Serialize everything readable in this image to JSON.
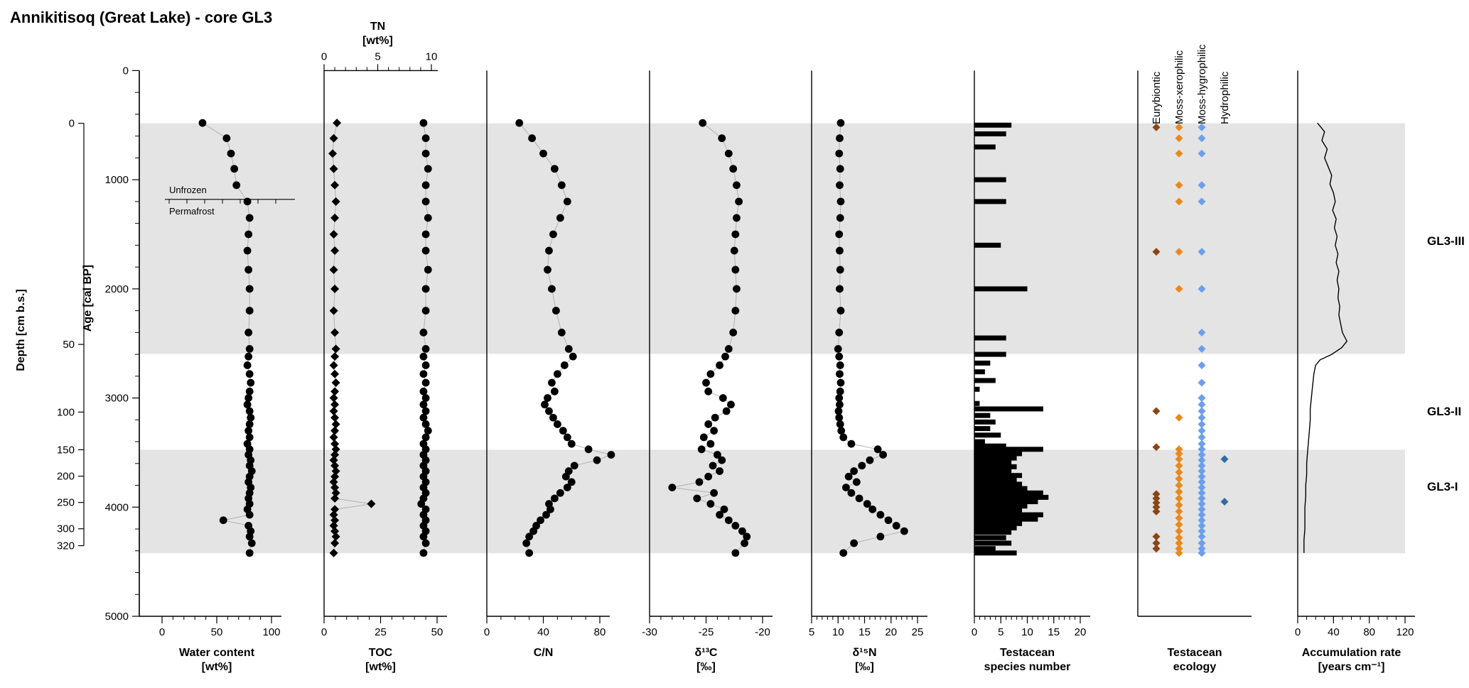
{
  "title": "Annikitisoq (Great Lake) - core GL3",
  "age_axis": {
    "label": "Age [cal  BP]",
    "min": 0,
    "max": 5000,
    "major_ticks": [
      0,
      1000,
      2000,
      3000,
      4000,
      5000
    ],
    "minor_step": 200
  },
  "depth_axis": {
    "label": "Depth [cm b.s.]",
    "ticks": [
      {
        "depth": 0,
        "age": 483
      },
      {
        "depth": 50,
        "age": 2509
      },
      {
        "depth": 100,
        "age": 3129
      },
      {
        "depth": 150,
        "age": 3474
      },
      {
        "depth": 200,
        "age": 3716
      },
      {
        "depth": 250,
        "age": 3957
      },
      {
        "depth": 300,
        "age": 4198
      },
      {
        "depth": 320,
        "age": 4353
      }
    ]
  },
  "zones": [
    {
      "name": "GL3-III",
      "age_from": 483,
      "age_to": 2595,
      "shaded": true,
      "label_age": 1560
    },
    {
      "name": "GL3-II",
      "age_from": 2595,
      "age_to": 3474,
      "shaded": false,
      "label_age": 3120
    },
    {
      "name": "GL3-I",
      "age_from": 3474,
      "age_to": 4422,
      "shaded": true,
      "label_age": 3810
    }
  ],
  "permafrost": {
    "unfrozen_label": "Unfrozen",
    "permafrost_label": "Permafrost",
    "boundary_age": 1180
  },
  "colors": {
    "shading": "#e4e4e4",
    "point": "#000000",
    "connector": "#b0b0b0",
    "bar": "#000000",
    "line": "#000000"
  },
  "chart_data": [
    {
      "id": "water",
      "type": "scatter",
      "xlabel": "Water content",
      "xunit": "[wt%]",
      "xlim": [
        0,
        100
      ],
      "xticks": [
        0,
        50,
        100
      ],
      "minor": 10,
      "marker": "circle",
      "ages": [
        480,
        620,
        760,
        900,
        1050,
        1200,
        1350,
        1500,
        1650,
        1825,
        2000,
        2200,
        2400,
        2550,
        2620,
        2700,
        2780,
        2860,
        2940,
        3000,
        3060,
        3120,
        3180,
        3240,
        3300,
        3360,
        3420,
        3470,
        3520,
        3570,
        3620,
        3670,
        3720,
        3770,
        3820,
        3870,
        3920,
        3970,
        4020,
        4070,
        4120,
        4170,
        4220,
        4270,
        4330,
        4420
      ],
      "values": [
        37,
        59,
        63,
        66,
        68,
        78,
        80,
        79,
        78,
        79,
        80,
        80,
        79,
        80,
        79,
        78,
        80,
        81,
        80,
        79,
        78,
        80,
        81,
        80,
        79,
        80,
        78,
        80,
        79,
        81,
        80,
        82,
        80,
        79,
        81,
        80,
        79,
        80,
        78,
        80,
        56,
        79,
        81,
        80,
        82,
        80
      ]
    },
    {
      "id": "toc_tn",
      "type": "scatter",
      "xlabel": "TOC",
      "xunit": "[wt%]",
      "xlim": [
        0,
        50
      ],
      "xticks": [
        0,
        25,
        50
      ],
      "minor": 5,
      "marker": "circle",
      "ages": [
        480,
        620,
        760,
        900,
        1050,
        1200,
        1350,
        1500,
        1650,
        1825,
        2000,
        2200,
        2400,
        2550,
        2620,
        2700,
        2780,
        2860,
        2940,
        3000,
        3060,
        3120,
        3180,
        3240,
        3300,
        3360,
        3420,
        3470,
        3520,
        3570,
        3620,
        3670,
        3720,
        3770,
        3820,
        3870,
        3920,
        3970,
        4020,
        4070,
        4120,
        4170,
        4220,
        4270,
        4330,
        4420
      ],
      "values": [
        44,
        45,
        45,
        46,
        45,
        45,
        46,
        45,
        45,
        46,
        45,
        45,
        44,
        45,
        44,
        45,
        44,
        45,
        44,
        45,
        44,
        45,
        44,
        45,
        46,
        45,
        44,
        45,
        44,
        45,
        44,
        45,
        44,
        45,
        44,
        45,
        44,
        43,
        45,
        44,
        45,
        44,
        45,
        44,
        45,
        44
      ],
      "top_axis": {
        "xlabel": "TN",
        "xunit": "[wt%]",
        "xlim": [
          0,
          10
        ],
        "xticks": [
          0,
          5,
          10
        ],
        "minor": 1,
        "marker": "diamond",
        "ages": [
          480,
          620,
          760,
          900,
          1050,
          1200,
          1350,
          1500,
          1650,
          1825,
          2000,
          2200,
          2400,
          2550,
          2620,
          2700,
          2780,
          2860,
          2940,
          3000,
          3060,
          3120,
          3180,
          3240,
          3300,
          3360,
          3420,
          3470,
          3520,
          3570,
          3620,
          3670,
          3720,
          3770,
          3820,
          3870,
          3920,
          3970,
          4020,
          4070,
          4120,
          4170,
          4220,
          4270,
          4330,
          4420
        ],
        "values": [
          1.2,
          0.9,
          0.8,
          0.9,
          1.0,
          1.1,
          1.0,
          0.9,
          1.0,
          0.9,
          1.0,
          0.9,
          1.0,
          1.1,
          1.0,
          0.9,
          1.0,
          1.1,
          1.0,
          0.9,
          1.0,
          0.9,
          1.0,
          1.1,
          1.0,
          0.9,
          1.0,
          1.1,
          1.0,
          0.9,
          1.0,
          1.1,
          1.0,
          0.9,
          1.0,
          1.1,
          1.0,
          4.4,
          1.0,
          0.9,
          1.0,
          0.9,
          1.0,
          1.1,
          1.0,
          0.9
        ]
      }
    },
    {
      "id": "cn",
      "type": "scatter",
      "xlabel": "C/N",
      "xunit": "",
      "xlim": [
        0,
        80
      ],
      "xticks": [
        0,
        40,
        80
      ],
      "minor": 10,
      "marker": "circle",
      "ages": [
        480,
        620,
        760,
        900,
        1050,
        1200,
        1350,
        1500,
        1650,
        1825,
        2000,
        2200,
        2400,
        2550,
        2620,
        2700,
        2780,
        2860,
        2940,
        3000,
        3060,
        3120,
        3180,
        3240,
        3300,
        3360,
        3420,
        3470,
        3520,
        3570,
        3620,
        3670,
        3720,
        3770,
        3820,
        3870,
        3920,
        3970,
        4020,
        4070,
        4120,
        4170,
        4220,
        4270,
        4330,
        4420
      ],
      "values": [
        23,
        32,
        40,
        48,
        53,
        57,
        52,
        47,
        44,
        43,
        46,
        49,
        53,
        58,
        61,
        55,
        50,
        46,
        48,
        43,
        41,
        44,
        47,
        50,
        54,
        57,
        60,
        72,
        88,
        78,
        62,
        58,
        56,
        60,
        57,
        52,
        48,
        44,
        45,
        42,
        38,
        35,
        33,
        30,
        28,
        30
      ]
    },
    {
      "id": "d13c",
      "type": "scatter",
      "xlabel": "δ¹³C",
      "xunit": "[‰]",
      "xlim": [
        -30,
        -20
      ],
      "xticks": [
        -30,
        -25,
        -20
      ],
      "minor": 1,
      "marker": "circle",
      "ages": [
        480,
        620,
        760,
        900,
        1050,
        1200,
        1350,
        1500,
        1650,
        1825,
        2000,
        2200,
        2400,
        2550,
        2620,
        2700,
        2780,
        2860,
        2940,
        3000,
        3060,
        3120,
        3180,
        3240,
        3300,
        3360,
        3420,
        3470,
        3520,
        3570,
        3620,
        3670,
        3720,
        3770,
        3820,
        3870,
        3920,
        3970,
        4020,
        4070,
        4120,
        4170,
        4220,
        4270,
        4330,
        4420
      ],
      "values": [
        -25.3,
        -23.6,
        -23.0,
        -22.6,
        -22.3,
        -22.1,
        -22.3,
        -22.4,
        -22.5,
        -22.4,
        -22.3,
        -22.4,
        -22.6,
        -23.0,
        -23.3,
        -23.8,
        -24.6,
        -25.0,
        -24.8,
        -23.5,
        -22.8,
        -23.2,
        -24.2,
        -24.8,
        -24.3,
        -25.2,
        -24.6,
        -25.4,
        -24.0,
        -23.6,
        -24.4,
        -23.8,
        -24.8,
        -25.6,
        -28.0,
        -24.3,
        -25.8,
        -24.6,
        -23.4,
        -23.8,
        -23.0,
        -22.4,
        -21.8,
        -21.4,
        -21.6,
        -22.4
      ]
    },
    {
      "id": "d15n",
      "type": "scatter",
      "xlabel": "δ¹⁵N",
      "xunit": "[‰]",
      "xlim": [
        5,
        25
      ],
      "xticks": [
        5,
        10,
        15,
        20,
        25
      ],
      "minor": 1,
      "marker": "circle",
      "ages": [
        480,
        620,
        760,
        900,
        1050,
        1200,
        1350,
        1500,
        1650,
        1825,
        2000,
        2200,
        2400,
        2550,
        2620,
        2700,
        2780,
        2860,
        2940,
        3000,
        3060,
        3120,
        3180,
        3240,
        3300,
        3360,
        3420,
        3470,
        3520,
        3570,
        3620,
        3670,
        3720,
        3770,
        3820,
        3870,
        3920,
        3970,
        4020,
        4070,
        4120,
        4170,
        4220,
        4270,
        4330,
        4420
      ],
      "values": [
        10.5,
        10.3,
        10.2,
        10.4,
        10.3,
        10.5,
        10.4,
        10.2,
        10.3,
        10.4,
        10.3,
        10.5,
        10.2,
        10.0,
        10.2,
        10.4,
        10.3,
        10.5,
        10.4,
        10.2,
        10.3,
        10.1,
        10.2,
        10.4,
        10.6,
        11.0,
        12.5,
        17.5,
        18.5,
        16.0,
        14.5,
        13.0,
        12.0,
        13.5,
        11.5,
        12.5,
        14.0,
        15.5,
        16.5,
        18.0,
        19.5,
        21.0,
        22.5,
        18.0,
        13.0,
        11.0
      ]
    },
    {
      "id": "species",
      "type": "bar",
      "xlabel": "Testacean",
      "xunit": "species number",
      "xlim": [
        0,
        20
      ],
      "xticks": [
        0,
        5,
        10,
        15,
        20
      ],
      "minor": 1,
      "ages": [
        500,
        580,
        700,
        1000,
        1200,
        1600,
        2000,
        2450,
        2600,
        2680,
        2760,
        2840,
        2920,
        3050,
        3100,
        3160,
        3220,
        3280,
        3340,
        3400,
        3440,
        3470,
        3510,
        3550,
        3590,
        3630,
        3670,
        3710,
        3750,
        3790,
        3830,
        3870,
        3910,
        3950,
        3990,
        4030,
        4070,
        4110,
        4150,
        4190,
        4230,
        4280,
        4330,
        4380,
        4420
      ],
      "values": [
        7,
        6,
        4,
        6,
        6,
        5,
        10,
        6,
        6,
        3,
        2,
        4,
        1,
        1,
        13,
        3,
        4,
        3,
        5,
        2,
        6,
        13,
        9,
        8,
        7,
        8,
        7,
        9,
        8,
        9,
        10,
        13,
        14,
        12,
        10,
        9,
        13,
        12,
        9,
        8,
        7,
        6,
        7,
        4,
        8
      ]
    },
    {
      "id": "ecology",
      "type": "ecology",
      "xlabel": "Testacean",
      "xunit": "ecology",
      "groups": [
        {
          "name": "Eurybiontic",
          "color": "#8B4513",
          "ages": [
            520,
            1660,
            3120,
            3450,
            3880,
            3920,
            3960,
            4000,
            4040,
            4270,
            4330,
            4380
          ]
        },
        {
          "name": "Moss-xerophilic",
          "color": "#E8891D",
          "ages": [
            520,
            620,
            760,
            1050,
            1200,
            1660,
            2000,
            3180,
            3470,
            3510,
            3560,
            3620,
            3680,
            3740,
            3800,
            3860,
            3920,
            3980,
            4040,
            4100,
            4160,
            4220,
            4280,
            4330,
            4380,
            4420
          ]
        },
        {
          "name": "Moss-hygrophilic",
          "color": "#6D9EEB",
          "ages": [
            520,
            620,
            760,
            1050,
            1200,
            1660,
            2000,
            2400,
            2550,
            2700,
            2860,
            3000,
            3060,
            3120,
            3180,
            3240,
            3300,
            3360,
            3420,
            3470,
            3520,
            3570,
            3620,
            3670,
            3720,
            3770,
            3820,
            3870,
            3920,
            3970,
            4020,
            4070,
            4120,
            4170,
            4220,
            4270,
            4330,
            4380,
            4420
          ]
        },
        {
          "name": "Hydrophilic",
          "color": "#2E6DA4",
          "ages": [
            3560,
            3950
          ]
        }
      ]
    },
    {
      "id": "accum",
      "type": "line",
      "xlabel": "Accumulation rate",
      "xunit": "[years cm⁻¹]",
      "xlim": [
        0,
        120
      ],
      "xticks": [
        0,
        40,
        80,
        120
      ],
      "minor": 10,
      "ages": [
        480,
        560,
        640,
        720,
        800,
        880,
        960,
        1040,
        1120,
        1200,
        1280,
        1360,
        1440,
        1520,
        1600,
        1680,
        1760,
        1840,
        1920,
        2000,
        2080,
        2160,
        2240,
        2320,
        2400,
        2480,
        2540,
        2600,
        2650,
        2700,
        2780,
        2860,
        2940,
        3020,
        3100,
        3200,
        3300,
        3400,
        3500,
        3600,
        3700,
        3800,
        3900,
        4000,
        4100,
        4200,
        4300,
        4420
      ],
      "values": [
        22,
        30,
        27,
        33,
        30,
        34,
        38,
        36,
        40,
        42,
        39,
        43,
        41,
        44,
        42,
        45,
        43,
        46,
        44,
        46,
        45,
        47,
        46,
        48,
        50,
        55,
        49,
        38,
        25,
        20,
        18,
        17,
        16,
        15,
        14,
        14,
        13,
        12,
        11,
        10,
        10,
        9,
        9,
        8,
        8,
        8,
        7,
        7
      ]
    }
  ]
}
